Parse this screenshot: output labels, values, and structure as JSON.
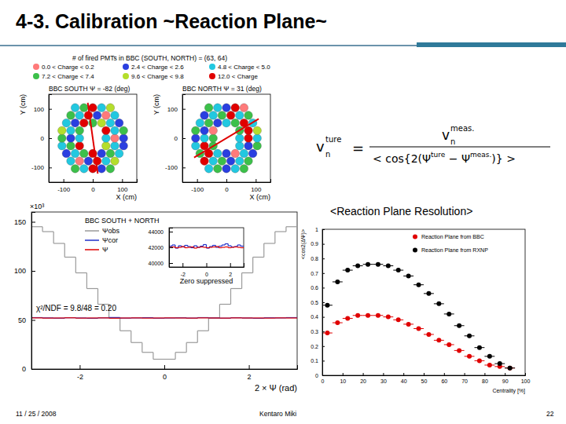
{
  "slide": {
    "title": "4-3. Calibration ~Reaction Plane~",
    "subheading": "<Reaction Plane Resolution>",
    "date": "11 / 25 / 2008",
    "author": "Kentaro Miki",
    "page": "22",
    "equation": {
      "lhs": "v",
      "lhs_sub": "n",
      "lhs_sup": "ture",
      "eq": "=",
      "num": "v",
      "num_sub": "n",
      "num_sup": "meas.",
      "den_1": "< cos{2(Ψ",
      "den_sup1": "ture",
      "den_2": " − Ψ",
      "den_sup2": "meas.",
      "den_3": ")} >"
    },
    "charge_legend": {
      "title": "# of fired PMTs in BBC (SOUTH, NORTH) = (63, 64)",
      "entries": [
        {
          "label": "0.0 < Charge < 0.2",
          "color": "#ff7a7a"
        },
        {
          "label": "2.4 < Charge < 2.6",
          "color": "#2a3fe0"
        },
        {
          "label": "4.8 < Charge < 5.0",
          "color": "#22c8e0"
        },
        {
          "label": "7.2 < Charge < 7.4",
          "color": "#3cc04a"
        },
        {
          "label": "9.6 < Charge < 9.8",
          "color": "#b4de2c"
        },
        {
          "label": "12.0 < Charge",
          "color": "#e00000"
        }
      ]
    }
  },
  "chart_data": [
    {
      "type": "scatter",
      "title": "BBC SOUTH Ψ = -82 (deg)",
      "x_label": "X (cm)",
      "y_label": "Y (cm)",
      "xlim": [
        -150,
        150
      ],
      "ylim": [
        -150,
        150
      ],
      "xticks": [
        -100,
        0,
        100
      ],
      "yticks": [
        -100,
        0,
        100
      ],
      "marker": "circle",
      "x": [
        -60,
        -30,
        0,
        30,
        60,
        -75,
        -45,
        -15,
        15,
        45,
        75,
        -90,
        -60,
        -30,
        0,
        30,
        60,
        90,
        -105,
        -75,
        -45,
        45,
        75,
        105,
        -105,
        -75,
        -45,
        45,
        75,
        105,
        -105,
        -75,
        -45,
        45,
        75,
        105,
        -90,
        -60,
        -30,
        0,
        30,
        60,
        90,
        -75,
        -45,
        -15,
        15,
        45,
        75,
        -60,
        -30,
        0,
        30,
        60
      ],
      "y": [
        -104,
        -104,
        -104,
        -104,
        -104,
        -78,
        -78,
        -78,
        -78,
        -78,
        -78,
        -52,
        -52,
        -52,
        -52,
        -52,
        -52,
        -52,
        -26,
        -26,
        -26,
        -26,
        -26,
        -26,
        0,
        0,
        0,
        0,
        0,
        0,
        26,
        26,
        26,
        26,
        26,
        26,
        52,
        52,
        52,
        52,
        52,
        52,
        52,
        78,
        78,
        78,
        78,
        78,
        78,
        104,
        104,
        104,
        104,
        104
      ],
      "colors": [
        "#3cc04a",
        "#22c8e0",
        "#e00000",
        "#2a3fe0",
        "#3cc04a",
        "#22c8e0",
        "#ff7a7a",
        "#2a3fe0",
        "#e00000",
        "#22c8e0",
        "#b4de2c",
        "#2a3fe0",
        "#22c8e0",
        "#3cc04a",
        "#e00000",
        "#2a3fe0",
        "#3cc04a",
        "#22c8e0",
        "#22c8e0",
        "#3cc04a",
        "#e00000",
        "#b4de2c",
        "#22c8e0",
        "#2a3fe0",
        "#3cc04a",
        "#2a3fe0",
        "#22c8e0",
        "#22c8e0",
        "#ff7a7a",
        "#2a3fe0",
        "#b4de2c",
        "#22c8e0",
        "#3cc04a",
        "#e00000",
        "#22c8e0",
        "#3cc04a",
        "#22c8e0",
        "#2a3fe0",
        "#e00000",
        "#3cc04a",
        "#b4de2c",
        "#22c8e0",
        "#2a3fe0",
        "#3cc04a",
        "#22c8e0",
        "#e00000",
        "#2a3fe0",
        "#ff7a7a",
        "#22c8e0",
        "#22c8e0",
        "#3cc04a",
        "#e00000",
        "#22c8e0",
        "#b4de2c"
      ],
      "plane_line": {
        "x": [
          -17,
          17
        ],
        "y": [
          121,
          -121
        ],
        "color": "#e00000"
      }
    },
    {
      "type": "scatter",
      "title": "BBC NORTH Ψ = 31 (deg)",
      "x_label": "X (cm)",
      "y_label": "Y (cm)",
      "xlim": [
        -150,
        150
      ],
      "ylim": [
        -150,
        150
      ],
      "xticks": [
        -100,
        0,
        100
      ],
      "yticks": [
        -100,
        0,
        100
      ],
      "marker": "circle",
      "x": [
        -60,
        -30,
        0,
        30,
        60,
        -75,
        -45,
        -15,
        15,
        45,
        75,
        -90,
        -60,
        -30,
        0,
        30,
        60,
        90,
        -105,
        -75,
        -45,
        45,
        75,
        105,
        -105,
        -75,
        -45,
        45,
        75,
        105,
        -105,
        -75,
        -45,
        45,
        75,
        105,
        -90,
        -60,
        -30,
        0,
        30,
        60,
        90,
        -75,
        -45,
        -15,
        15,
        45,
        75,
        -60,
        -30,
        0,
        30,
        60
      ],
      "y": [
        -104,
        -104,
        -104,
        -104,
        -104,
        -78,
        -78,
        -78,
        -78,
        -78,
        -78,
        -52,
        -52,
        -52,
        -52,
        -52,
        -52,
        -52,
        -26,
        -26,
        -26,
        -26,
        -26,
        -26,
        0,
        0,
        0,
        0,
        0,
        0,
        26,
        26,
        26,
        26,
        26,
        26,
        52,
        52,
        52,
        52,
        52,
        52,
        52,
        78,
        78,
        78,
        78,
        78,
        78,
        104,
        104,
        104,
        104,
        104
      ],
      "colors": [
        "#22c8e0",
        "#3cc04a",
        "#2a3fe0",
        "#22c8e0",
        "#3cc04a",
        "#e00000",
        "#22c8e0",
        "#3cc04a",
        "#2a3fe0",
        "#22c8e0",
        "#3cc04a",
        "#3cc04a",
        "#e00000",
        "#22c8e0",
        "#2a3fe0",
        "#ff7a7a",
        "#22c8e0",
        "#2a3fe0",
        "#22c8e0",
        "#e00000",
        "#3cc04a",
        "#22c8e0",
        "#2a3fe0",
        "#3cc04a",
        "#2a3fe0",
        "#22c8e0",
        "#3cc04a",
        "#22c8e0",
        "#e00000",
        "#22c8e0",
        "#3cc04a",
        "#2a3fe0",
        "#ff7a7a",
        "#3cc04a",
        "#e00000",
        "#b4de2c",
        "#22c8e0",
        "#3cc04a",
        "#2a3fe0",
        "#22c8e0",
        "#3cc04a",
        "#e00000",
        "#22c8e0",
        "#2a3fe0",
        "#22c8e0",
        "#3cc04a",
        "#e00000",
        "#22c8e0",
        "#3cc04a",
        "#3cc04a",
        "#22c8e0",
        "#2a3fe0",
        "#e00000",
        "#ff7a7a"
      ],
      "plane_line": {
        "x": [
          -110,
          110
        ],
        "y": [
          -66,
          66
        ],
        "color": "#e00000"
      }
    },
    {
      "type": "histogram",
      "title": "BBC SOUTH + NORTH",
      "x_label": "2 × Ψ (rad)",
      "xlim": [
        -3.1416,
        3.1416
      ],
      "ylim": [
        0,
        160
      ],
      "xticks": [
        -2,
        0,
        2
      ],
      "yticks": [
        0,
        50,
        100,
        150
      ],
      "bins": [
        -3.1416,
        -2.8798,
        -2.618,
        -2.3562,
        -2.0944,
        -1.8326,
        -1.5708,
        -1.309,
        -1.0472,
        -0.7854,
        -0.5236,
        -0.2618,
        0,
        0.2618,
        0.5236,
        0.7854,
        1.0472,
        1.309,
        1.5708,
        1.8326,
        2.0944,
        2.3562,
        2.618,
        2.8798,
        3.1416
      ],
      "legend": "upper left",
      "annotations": [
        "×10³",
        "χ²/NDF = 9.8/48 = 0.20"
      ],
      "series": [
        {
          "name": "Ψobs",
          "color": "#9a9a9a",
          "values": [
            145,
            140,
            128,
            114,
            98,
            82,
            66,
            52,
            39,
            27,
            17,
            10,
            10,
            17,
            27,
            39,
            52,
            66,
            82,
            98,
            114,
            128,
            140,
            145
          ]
        },
        {
          "name": "Ψcor",
          "color": "#2030c8",
          "values": [
            52.4,
            52.1,
            51.8,
            52.3,
            52.0,
            51.7,
            52.2,
            52.5,
            51.9,
            52.1,
            52.3,
            51.8,
            52.0,
            52.2,
            51.9,
            52.4,
            52.1,
            51.8,
            52.3,
            52.0,
            51.7,
            52.2,
            52.1,
            52.4
          ]
        },
        {
          "name": "Ψ",
          "color": "#e00000",
          "values": [
            52.1,
            51.9,
            52.0,
            52.2,
            51.9,
            52.0,
            52.1,
            51.8,
            52.0,
            52.1,
            51.9,
            52.0,
            52.1,
            52.0,
            51.9,
            52.1,
            52.0,
            51.9,
            52.1,
            52.0,
            52.0,
            51.9,
            52.1,
            52.0
          ]
        }
      ]
    },
    {
      "type": "histogram",
      "title": "Zero suppressed",
      "xlim": [
        -3.1416,
        3.1416
      ],
      "ylim": [
        39500,
        44500
      ],
      "xticks": [
        -2,
        0,
        2
      ],
      "yticks": [
        40000,
        42000,
        44000
      ],
      "bins": [
        -3.1416,
        -2.8798,
        -2.618,
        -2.3562,
        -2.0944,
        -1.8326,
        -1.5708,
        -1.309,
        -1.0472,
        -0.7854,
        -0.5236,
        -0.2618,
        0,
        0.2618,
        0.5236,
        0.7854,
        1.0472,
        1.309,
        1.5708,
        1.8326,
        2.0944,
        2.3562,
        2.618,
        2.8798,
        3.1416
      ],
      "series": [
        {
          "color": "#2030c8",
          "values": [
            42150,
            42300,
            41900,
            42200,
            42050,
            42250,
            42100,
            41950,
            42200,
            42000,
            42150,
            42350,
            41900,
            42100,
            42250,
            42000,
            42150,
            42300,
            42450,
            42200,
            42050,
            42100,
            42300,
            42150
          ]
        },
        {
          "color": "#e00000",
          "values": [
            42000,
            42050,
            41950,
            42000,
            42100,
            41950,
            42000,
            42050,
            41900,
            42000,
            42050,
            42000,
            41950,
            42000,
            42050,
            42100,
            41950,
            42000,
            42050,
            41950,
            42000,
            42050,
            42000,
            41950
          ]
        }
      ]
    },
    {
      "type": "scatter",
      "x_label": "Centrality [%]",
      "y_label": "<cos2(ΔΨ)>",
      "xlim": [
        0,
        100
      ],
      "ylim": [
        0,
        1
      ],
      "xticks": [
        0,
        10,
        20,
        30,
        40,
        50,
        60,
        70,
        80,
        90,
        100
      ],
      "yticks": [
        0,
        0.1,
        0.2,
        0.3,
        0.4,
        0.5,
        0.6,
        0.7,
        0.8,
        0.9,
        1
      ],
      "legend": "upper right",
      "x": [
        2.5,
        7.5,
        12.5,
        17.5,
        22.5,
        27.5,
        32.5,
        37.5,
        42.5,
        47.5,
        52.5,
        57.5,
        62.5,
        67.5,
        72.5,
        77.5,
        82.5,
        87.5,
        92.5
      ],
      "x_err": [
        2.5,
        2.5,
        2.5,
        2.5,
        2.5,
        2.5,
        2.5,
        2.5,
        2.5,
        2.5,
        2.5,
        2.5,
        2.5,
        2.5,
        2.5,
        2.5,
        2.5,
        2.5,
        2.5
      ],
      "series": [
        {
          "name": "Reaction Plane from BBC",
          "color": "#e00000",
          "marker": "circle",
          "values": [
            0.29,
            0.36,
            0.39,
            0.41,
            0.41,
            0.41,
            0.4,
            0.38,
            0.35,
            0.32,
            0.28,
            0.24,
            0.21,
            0.17,
            0.13,
            0.1,
            0.07,
            0.06,
            0.05
          ]
        },
        {
          "name": "Reaction Plane from RXNP",
          "color": "#000000",
          "marker": "circle",
          "values": [
            0.48,
            0.64,
            0.72,
            0.75,
            0.76,
            0.76,
            0.75,
            0.72,
            0.68,
            0.62,
            0.56,
            0.49,
            0.42,
            0.34,
            0.27,
            0.19,
            0.13,
            0.08,
            0.05
          ]
        }
      ]
    }
  ]
}
